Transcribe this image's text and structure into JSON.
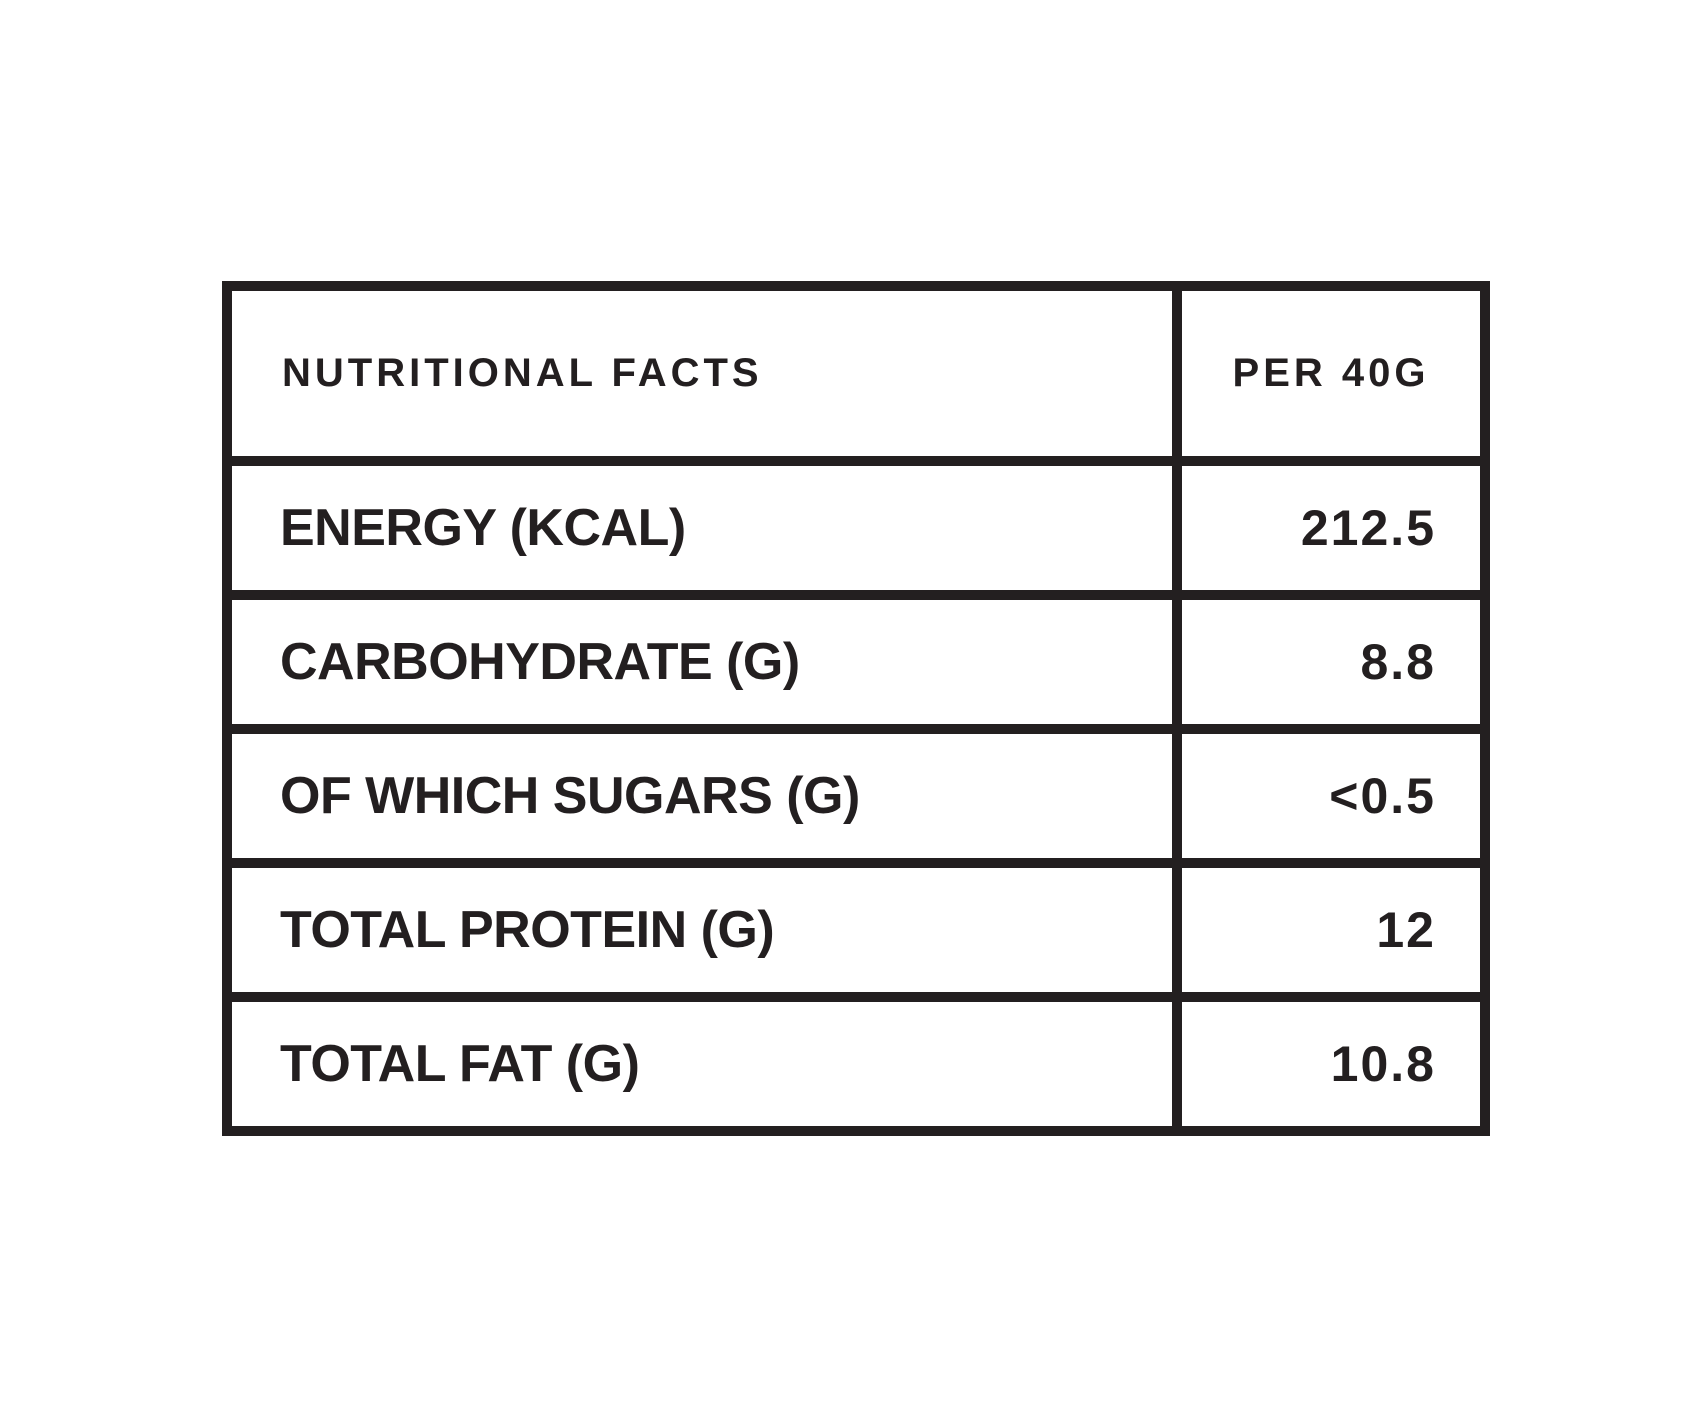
{
  "table": {
    "header": {
      "title": "NUTRITIONAL FACTS",
      "per_serving": "PER 40G"
    },
    "rows": [
      {
        "label": "ENERGY (KCAL)",
        "value": "212.5"
      },
      {
        "label": "CARBOHYDRATE (G)",
        "value": "8.8"
      },
      {
        "label": "OF WHICH SUGARS (G)",
        "value": "<0.5"
      },
      {
        "label": "TOTAL PROTEIN (G)",
        "value": "12"
      },
      {
        "label": "TOTAL FAT (G)",
        "value": "10.8"
      }
    ],
    "colors": {
      "ink": "#231f20",
      "background": "#ffffff"
    }
  }
}
